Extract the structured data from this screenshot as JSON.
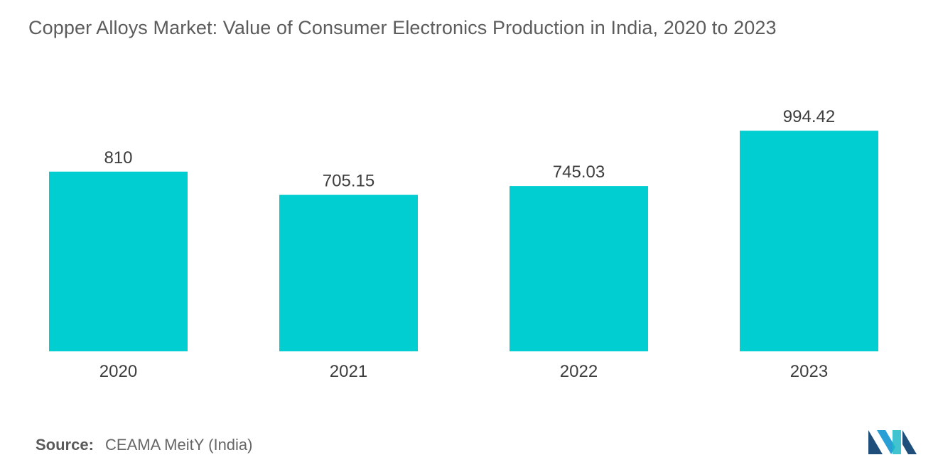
{
  "chart_data": {
    "type": "bar",
    "title": "Copper Alloys Market: Value of Consumer Electronics Production in India, 2020 to 2023",
    "categories": [
      "2020",
      "2021",
      "2022",
      "2023"
    ],
    "values": [
      810,
      705.15,
      745.03,
      994.42
    ],
    "value_labels": [
      "810",
      "705.15",
      "745.03",
      "994.42"
    ],
    "xlabel": "",
    "ylabel": "",
    "ylim": [
      0,
      1000
    ],
    "grid": false,
    "legend": "none",
    "bar_color": "#00ced1"
  },
  "source": {
    "label": "Source:",
    "text": "CEAMA MeitY (India)"
  },
  "logo": {
    "icon": "mordor-intelligence-logo-icon",
    "colors": [
      "#1f4e7a",
      "#2a9fd6",
      "#20b8c8"
    ]
  }
}
